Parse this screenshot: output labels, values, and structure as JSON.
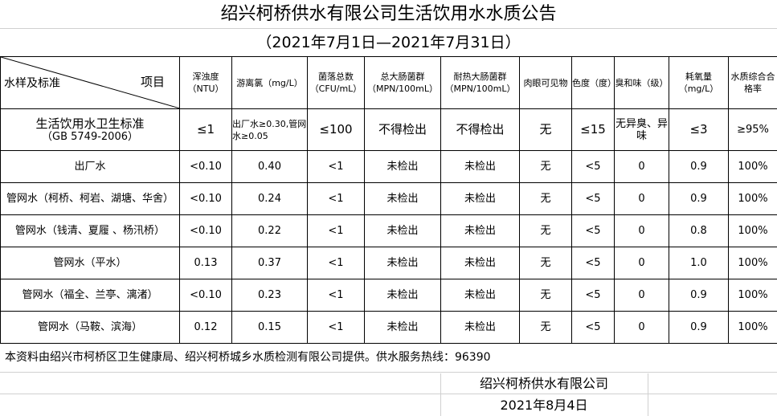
{
  "title": "绍兴柯桥供水有限公司生活饮用水水质公告",
  "subtitle": "（2021年7月1日—2021年7月31日）",
  "header": {
    "left": "水样及标准",
    "right": "项目",
    "columns": [
      "浑浊度（NTU）",
      "游离氯（mg/L）",
      "菌落总数（CFU/mL）",
      "总大肠菌群（MPN/100mL）",
      "耐热大肠菌群（MPN/100mL）",
      "肉眼可见物",
      "色度（度）",
      "臭和味（级）",
      "耗氧量（mg/L）",
      "水质综合合格率"
    ]
  },
  "standard": {
    "name": "生活饮用水卫生标准",
    "code": "（GB 5749-2006）",
    "values": [
      "≤1",
      "出厂水≥0.30,管网水≥0.05",
      "≤100",
      "不得检出",
      "不得检出",
      "无",
      "≤15",
      "无异臭、异味",
      "≤3",
      "≥95%"
    ]
  },
  "rows": [
    {
      "name": "出厂水",
      "values": [
        "<0.10",
        "0.40",
        "<1",
        "未检出",
        "未检出",
        "无",
        "<5",
        "0",
        "0.9",
        "100%"
      ]
    },
    {
      "name": "管网水（柯桥、柯岩、湖塘、华舍）",
      "values": [
        "<0.10",
        "0.24",
        "<1",
        "未检出",
        "未检出",
        "无",
        "<5",
        "0",
        "0.9",
        "100%"
      ]
    },
    {
      "name": "管网水（钱清、夏履 、杨汛桥）",
      "values": [
        "<0.10",
        "0.22",
        "<1",
        "未检出",
        "未检出",
        "无",
        "<5",
        "0",
        "0.8",
        "100%"
      ]
    },
    {
      "name": "管网水（平水）",
      "values": [
        "0.13",
        "0.37",
        "<1",
        "未检出",
        "未检出",
        "无",
        "<5",
        "0",
        "1.0",
        "100%"
      ]
    },
    {
      "name": "管网水（福全、兰亭、漓渚）",
      "values": [
        "<0.10",
        "0.23",
        "<1",
        "未检出",
        "未检出",
        "无",
        "<5",
        "0",
        "0.9",
        "100%"
      ]
    },
    {
      "name": "管网水（马鞍、滨海）",
      "values": [
        "0.12",
        "0.15",
        "<1",
        "未检出",
        "未检出",
        "无",
        "<5",
        "0",
        "0.9",
        "100%"
      ]
    }
  ],
  "note": "本资料由绍兴市柯桥区卫生健康局、绍兴柯桥城乡水质检测有限公司提供。供水服务热线：96390",
  "company": "绍兴柯桥供水有限公司",
  "date": "2021年8月4日"
}
